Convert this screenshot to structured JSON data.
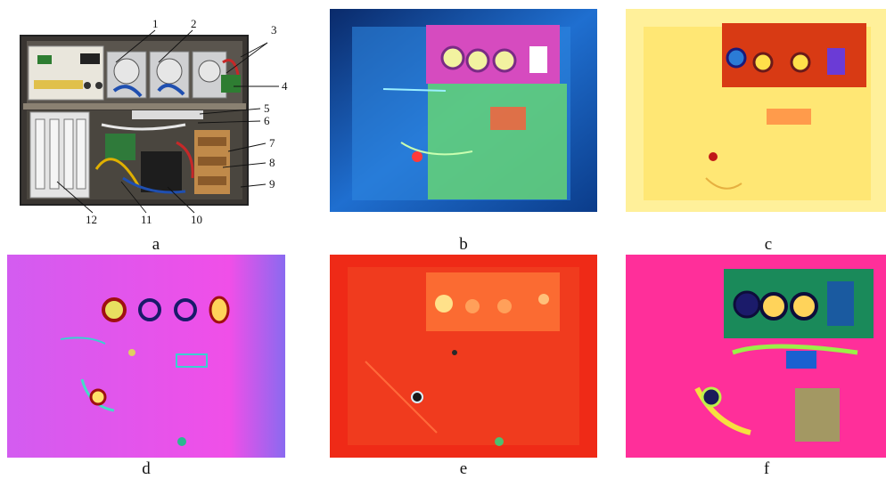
{
  "figure": {
    "panels": [
      {
        "id": "a",
        "caption": "a",
        "kind": "photograph"
      },
      {
        "id": "b",
        "caption": "b",
        "kind": "thermal",
        "palette": "blue-green"
      },
      {
        "id": "c",
        "caption": "c",
        "kind": "thermal",
        "palette": "yellow-red"
      },
      {
        "id": "d",
        "caption": "d",
        "kind": "thermal",
        "palette": "magenta-violet"
      },
      {
        "id": "e",
        "caption": "e",
        "kind": "thermal",
        "palette": "red-orange"
      },
      {
        "id": "f",
        "caption": "f",
        "kind": "thermal",
        "palette": "pink-green"
      }
    ],
    "callouts": [
      "1",
      "2",
      "3",
      "4",
      "5",
      "6",
      "7",
      "8",
      "9",
      "10",
      "11",
      "12"
    ]
  }
}
